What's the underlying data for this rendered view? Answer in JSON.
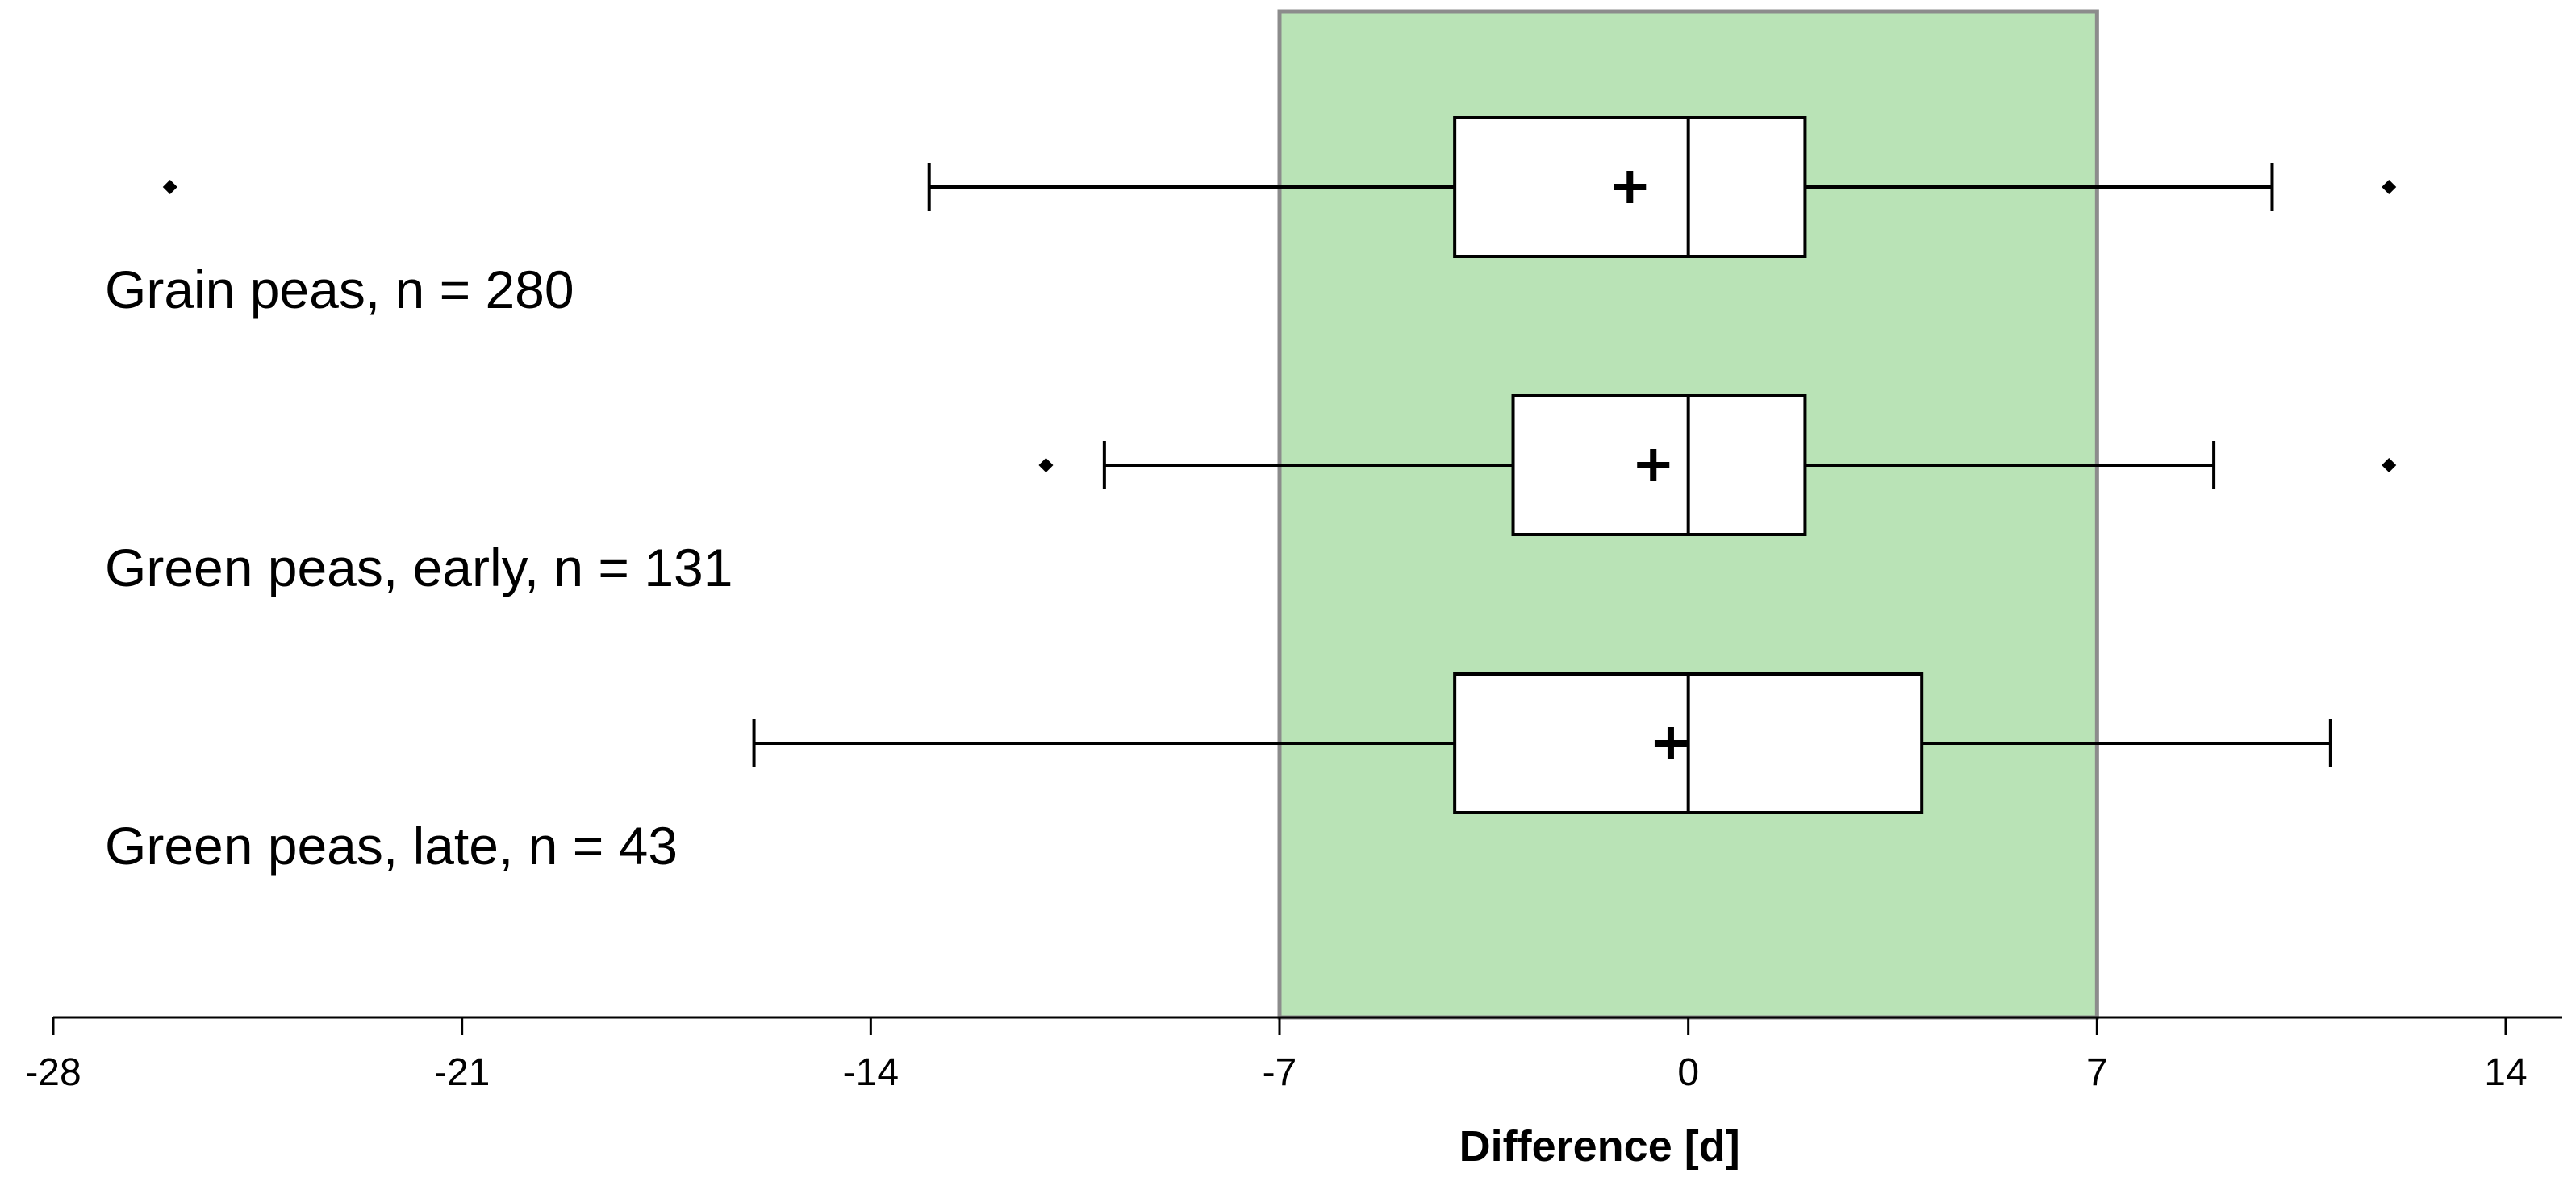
{
  "chart_data": {
    "type": "boxplot",
    "orientation": "horizontal",
    "xlabel": "Difference [d]",
    "xlim": [
      -28,
      14
    ],
    "xticks": [
      -28,
      -21,
      -14,
      -7,
      0,
      7,
      14
    ],
    "xtick_labels": [
      "-28",
      "-21",
      "-14",
      "-7",
      "0",
      "7",
      "14"
    ],
    "shaded_region": {
      "from": -7,
      "to": 7,
      "color": "#b9e3b6",
      "border": "#8c8c8c"
    },
    "series": [
      {
        "name": "Grain peas, n = 280",
        "q1": -4,
        "median": 0,
        "q3": 2,
        "mean": -1,
        "whisker_low": -13,
        "whisker_high": 10,
        "outliers": [
          -26,
          12
        ]
      },
      {
        "name": "Green peas, early, n = 131",
        "q1": -3,
        "median": 0,
        "q3": 2,
        "mean": -0.6,
        "whisker_low": -10,
        "whisker_high": 9,
        "outliers": [
          -11,
          12
        ]
      },
      {
        "name": "Green peas, late, n = 43",
        "q1": -4,
        "median": 0,
        "q3": 4,
        "mean": -0.3,
        "whisker_low": -16,
        "whisker_high": 11,
        "outliers": []
      }
    ]
  }
}
